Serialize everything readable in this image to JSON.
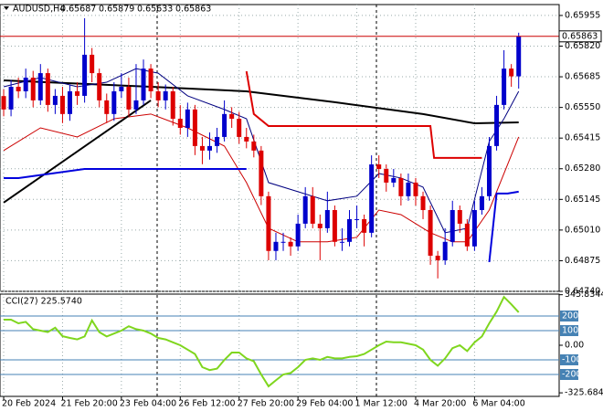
{
  "chart_data": [
    {
      "type": "candlestick",
      "title": "AUDUSD,H4",
      "xticks": [
        {
          "value": 0,
          "label": "20 Feb 2024"
        },
        {
          "value": 8,
          "label": "21 Feb 20:00"
        },
        {
          "value": 16,
          "label": "23 Feb 04:00"
        },
        {
          "value": 24,
          "label": "26 Feb 12:00"
        },
        {
          "value": 32,
          "label": "27 Feb 20:00"
        },
        {
          "value": 40,
          "label": "29 Feb 04:00"
        },
        {
          "value": 48,
          "label": "1 Mar 12:00"
        },
        {
          "value": 56,
          "label": "4 Mar 20:00"
        },
        {
          "value": 64,
          "label": "6 Mar 04:00"
        }
      ],
      "xlim": [
        -0.5,
        75.5
      ],
      "ylim": [
        0.6474,
        0.66003
      ],
      "yticks": [
        0.65955,
        {
          "value": 0.6582,
          "label": "0.65820"
        },
        0.65685,
        {
          "value": 0.6555,
          "label": "0.65550"
        },
        0.65415,
        {
          "value": 0.6528,
          "label": "0.65280"
        },
        0.65145,
        {
          "value": 0.6501,
          "label": "0.65010"
        },
        0.64875,
        {
          "value": 0.6474,
          "label": "0.64740"
        }
      ],
      "grid": true,
      "up_color": "#0000cc",
      "down_color": "#dd0000",
      "price_line_color": "#cc0000",
      "open": [
        0.656,
        0.65541,
        0.65641,
        0.65621,
        0.65681,
        0.65581,
        0.65701,
        0.65561,
        0.65601,
        0.65521,
        0.65621,
        0.65601,
        0.65782,
        0.65701,
        0.65581,
        0.65521,
        0.65621,
        0.65641,
        0.65541,
        0.65581,
        0.65721,
        0.65621,
        0.65581,
        0.65621,
        0.655,
        0.6546,
        0.65541,
        0.6538,
        0.6536,
        0.6538,
        0.6542,
        0.65521,
        0.655,
        0.6542,
        0.654,
        0.6536,
        0.65159,
        0.64918,
        0.64958,
        0.64958,
        0.64938,
        0.65038,
        0.65159,
        0.65038,
        0.65018,
        0.65098,
        0.64958,
        0.64958,
        0.65058,
        0.65058,
        0.64998,
        0.65299,
        0.65279,
        0.65219,
        0.65239,
        0.65159,
        0.65219,
        0.65159,
        0.65098,
        0.64897,
        0.64877,
        0.64958,
        0.65098,
        0.65038,
        0.64938,
        0.65098,
        0.65159,
        0.6538,
        0.65561,
        0.65721,
        0.65687
      ],
      "high": [
        0.6563,
        0.65671,
        0.65681,
        0.65721,
        0.65711,
        0.65741,
        0.65721,
        0.65631,
        0.65641,
        0.65651,
        0.65661,
        0.65943,
        0.65812,
        0.65721,
        0.65611,
        0.65661,
        0.65701,
        0.65681,
        0.65741,
        0.65761,
        0.65741,
        0.65661,
        0.65651,
        0.65641,
        0.6556,
        0.65571,
        0.65561,
        0.6542,
        0.6544,
        0.6546,
        0.65581,
        0.65551,
        0.6553,
        0.6546,
        0.6543,
        0.6538,
        0.65179,
        0.64998,
        0.64998,
        0.64978,
        0.65078,
        0.65199,
        0.65199,
        0.65078,
        0.65179,
        0.65118,
        0.65018,
        0.65098,
        0.65118,
        0.65078,
        0.65339,
        0.65339,
        0.65299,
        0.65279,
        0.65259,
        0.65259,
        0.65239,
        0.65179,
        0.65118,
        0.64918,
        0.65018,
        0.65139,
        0.65118,
        0.65058,
        0.65139,
        0.65199,
        0.6542,
        0.65601,
        0.65802,
        0.65741,
        0.65879
      ],
      "low": [
        0.65511,
        0.65511,
        0.65591,
        0.65591,
        0.65551,
        0.65561,
        0.65531,
        0.65521,
        0.65481,
        0.65491,
        0.65561,
        0.65571,
        0.65661,
        0.65551,
        0.65481,
        0.65491,
        0.65591,
        0.65511,
        0.65521,
        0.65561,
        0.65591,
        0.65551,
        0.65541,
        0.6547,
        0.6543,
        0.6542,
        0.6534,
        0.653,
        0.6532,
        0.6535,
        0.654,
        0.6546,
        0.6539,
        0.6537,
        0.6533,
        0.6512,
        0.64877,
        0.64877,
        0.64918,
        0.64897,
        0.64918,
        0.65018,
        0.65018,
        0.64877,
        0.64998,
        0.64938,
        0.64918,
        0.64938,
        0.65018,
        0.64938,
        0.64978,
        0.65239,
        0.65179,
        0.65199,
        0.65118,
        0.65139,
        0.65118,
        0.65058,
        0.64857,
        0.64797,
        0.64857,
        0.64938,
        0.64998,
        0.64918,
        0.64918,
        0.65078,
        0.65139,
        0.6536,
        0.65541,
        0.65641,
        0.65633
      ],
      "close": [
        0.65541,
        0.65641,
        0.65621,
        0.65681,
        0.65581,
        0.65701,
        0.65561,
        0.65601,
        0.65521,
        0.65621,
        0.65601,
        0.65782,
        0.65701,
        0.65581,
        0.65521,
        0.65621,
        0.65641,
        0.65541,
        0.65581,
        0.65721,
        0.65621,
        0.65581,
        0.65621,
        0.655,
        0.6546,
        0.65541,
        0.6538,
        0.6536,
        0.6538,
        0.6542,
        0.65521,
        0.655,
        0.6542,
        0.654,
        0.6536,
        0.65159,
        0.64918,
        0.64958,
        0.64958,
        0.64938,
        0.65038,
        0.65159,
        0.65038,
        0.65018,
        0.65098,
        0.64958,
        0.64958,
        0.65058,
        0.65058,
        0.64998,
        0.65299,
        0.65279,
        0.65219,
        0.65239,
        0.65159,
        0.65219,
        0.65159,
        0.65098,
        0.64897,
        0.64877,
        0.64958,
        0.65098,
        0.65038,
        0.64938,
        0.65098,
        0.65159,
        0.6538,
        0.65561,
        0.65721,
        0.65687,
        0.65863
      ],
      "overlays": [
        {
          "color": "#000000",
          "width": 2,
          "x": [
            0,
            20,
            33,
            45,
            57,
            64,
            70
          ],
          "values": [
            0.65669,
            0.65641,
            0.65621,
            0.65573,
            0.65521,
            0.6548,
            0.65484
          ]
        },
        {
          "color": "#000080",
          "width": 1,
          "x": [
            0,
            5,
            10,
            14,
            18,
            21,
            25,
            30,
            33,
            36,
            40,
            44,
            48,
            51,
            54,
            57,
            60,
            63,
            66,
            68,
            70
          ],
          "values": [
            0.65641,
            0.65681,
            0.65641,
            0.65661,
            0.65721,
            0.65701,
            0.65601,
            0.65541,
            0.655,
            0.65219,
            0.65179,
            0.65139,
            0.65159,
            0.65259,
            0.65239,
            0.65199,
            0.64998,
            0.65018,
            0.654,
            0.655,
            0.65621
          ]
        },
        {
          "color": "#cc0000",
          "width": 1,
          "x": [
            0,
            5,
            10,
            15,
            20,
            25,
            30,
            33,
            36,
            40,
            44,
            48,
            51,
            54,
            58,
            61,
            63,
            66,
            70
          ],
          "values": [
            0.6536,
            0.6546,
            0.6542,
            0.655,
            0.65521,
            0.6546,
            0.6538,
            0.65219,
            0.65018,
            0.64958,
            0.64958,
            0.64978,
            0.65098,
            0.65078,
            0.64998,
            0.64958,
            0.64958,
            0.65098,
            0.6542
          ]
        },
        {
          "color": "#000000",
          "width": 2,
          "x": [
            0,
            20
          ],
          "values": [
            0.65131,
            0.65581
          ]
        },
        {
          "color": "#dd0000",
          "width": 2,
          "x": [
            33,
            34,
            36,
            58,
            58.5,
            65
          ],
          "values": [
            0.65709,
            0.65521,
            0.65468,
            0.65468,
            0.65328,
            0.65328
          ]
        },
        {
          "color": "#0000dd",
          "width": 2,
          "x": [
            0,
            2,
            11,
            33
          ],
          "values": [
            0.65239,
            0.65239,
            0.65279,
            0.65279
          ]
        },
        {
          "color": "#0000dd",
          "width": 2,
          "x": [
            66,
            67,
            68.5,
            70
          ],
          "values": [
            0.64869,
            0.65171,
            0.65171,
            0.65179
          ]
        }
      ]
    },
    {
      "type": "line",
      "title": "CCI(27) 225.5740",
      "color": "#7fd61e",
      "ylim": [
        -350,
        350
      ],
      "yticks": [
        345.8344,
        {
          "value": 0,
          "label": "0.00"
        },
        -325.6841
      ],
      "level_ticks": [
        200,
        100,
        -100,
        -200
      ],
      "level_color": "#4682b4",
      "values": [
        175,
        175,
        150,
        160,
        110,
        100,
        90,
        120,
        62,
        50,
        40,
        60,
        170,
        90,
        60,
        80,
        100,
        130,
        110,
        100,
        80,
        50,
        40,
        20,
        0,
        -30,
        -60,
        -150,
        -170,
        -160,
        -100,
        -50,
        -50,
        -90,
        -110,
        -200,
        -281,
        -240,
        -200,
        -190,
        -150,
        -100,
        -90,
        -100,
        -80,
        -90,
        -90,
        -80,
        -75,
        -60,
        -30,
        0,
        25,
        20,
        20,
        10,
        0,
        -30,
        -100,
        -140,
        -90,
        -20,
        0,
        -40,
        20,
        60,
        150,
        230,
        330,
        280,
        225.574
      ]
    }
  ]
}
